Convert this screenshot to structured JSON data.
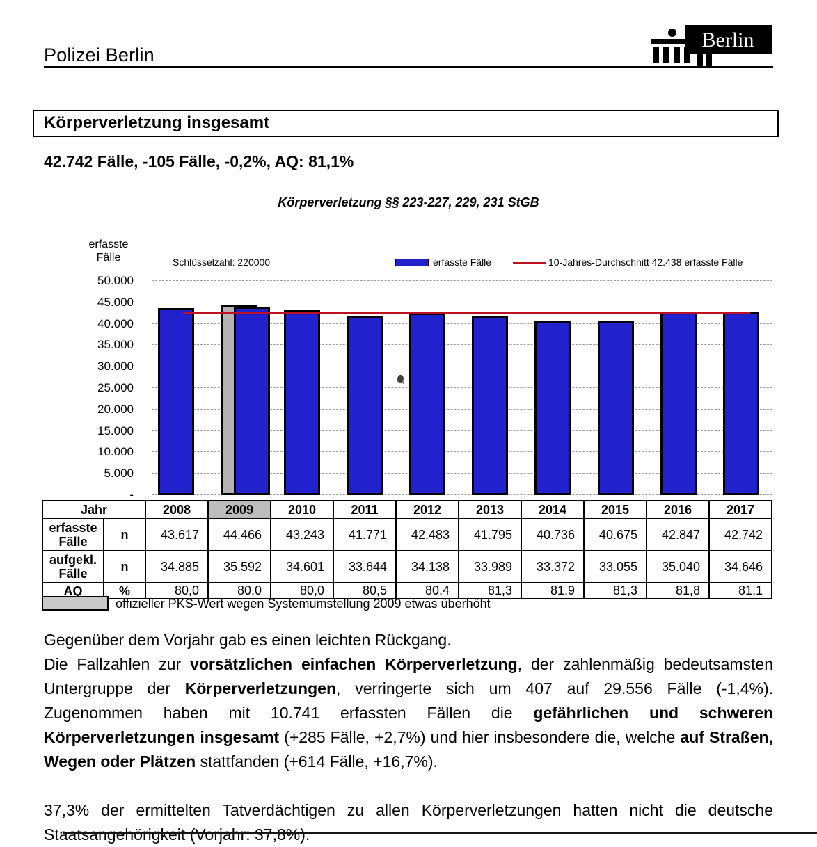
{
  "header": {
    "org": "Polizei Berlin",
    "logo": {
      "wordmark": "Berlin",
      "icon": "brandenburg-gate-icon"
    }
  },
  "title_box": "Körperverletzung insgesamt",
  "summary_line": "42.742 Fälle, -105 Fälle, -0,2%, AQ: 81,1%",
  "chart_data": {
    "type": "bar",
    "title": "Körperverletzung §§ 223-227, 229, 231 StGB",
    "ylabel": "erfasste Fälle",
    "key_label": "Schlüsselzahl: 220000",
    "categories": [
      "2008",
      "2009",
      "2010",
      "2011",
      "2012",
      "2013",
      "2014",
      "2015",
      "2016",
      "2017"
    ],
    "series": [
      {
        "name": "erfasste Fälle",
        "values": [
          43617,
          44466,
          43243,
          41771,
          42483,
          41795,
          40736,
          40675,
          42847,
          42742
        ]
      }
    ],
    "average_line": {
      "label": "10-Jahres-Durchschnitt 42.438 erfasste Fälle",
      "value": 42438
    },
    "legend": [
      {
        "swatch": "bar",
        "label": "erfasste Fälle"
      },
      {
        "swatch": "line",
        "label": "10-Jahres-Durchschnitt 42.438 erfasste Fälle"
      }
    ],
    "ylim": [
      0,
      50000
    ],
    "ytick_step": 5000,
    "zero_tick_label": "-",
    "grid": "dashed-horizontal",
    "bar_color": "#2121cd",
    "avg_color": "#bb1122",
    "highlight_2009": {
      "official_pks_value": 44466,
      "displayed_front_bar_estimate": 43850,
      "back_bar_color": "#b3b3b3",
      "note": "offizieller PKS-Wert wegen Systemumstellung 2009 etwas überhöht"
    }
  },
  "table": {
    "col_header": "Jahr",
    "years": [
      "2008",
      "2009",
      "2010",
      "2011",
      "2012",
      "2013",
      "2014",
      "2015",
      "2016",
      "2017"
    ],
    "highlight_year": "2009",
    "rows": [
      {
        "label": "erfasste Fälle",
        "unit": "n",
        "values": [
          "43.617",
          "44.466",
          "43.243",
          "41.771",
          "42.483",
          "41.795",
          "40.736",
          "40.675",
          "42.847",
          "42.742"
        ]
      },
      {
        "label": "aufgekl. Fälle",
        "unit": "n",
        "values": [
          "34.885",
          "35.592",
          "34.601",
          "33.644",
          "34.138",
          "33.989",
          "33.372",
          "33.055",
          "35.040",
          "34.646"
        ]
      },
      {
        "label": "AQ",
        "unit": "%",
        "values": [
          "80,0",
          "80,0",
          "80,0",
          "80,5",
          "80,4",
          "81,3",
          "81,9",
          "81,3",
          "81,8",
          "81,1"
        ]
      }
    ],
    "footnote": "offizieller PKS-Wert wegen Systemumstellung 2009 etwas überhöht"
  },
  "body": {
    "paragraphs": [
      {
        "gap_before": false,
        "segments": [
          {
            "text": "Gegenüber dem Vorjahr gab es einen leichten Rückgang.",
            "bold": false
          }
        ]
      },
      {
        "gap_before": false,
        "segments": [
          {
            "text": "Die Fallzahlen zur ",
            "bold": false
          },
          {
            "text": "vorsätzlichen einfachen Körperverletzung",
            "bold": true
          },
          {
            "text": ", der zahlenmäßig bedeutsamsten Untergruppe der ",
            "bold": false
          },
          {
            "text": "Körperverletzungen",
            "bold": true
          },
          {
            "text": ", verringerte sich um 407 auf 29.556 Fälle (-1,4%). Zugenommen haben mit 10.741 erfassten Fällen die ",
            "bold": false
          },
          {
            "text": "gefährlichen und schweren Körperverletzungen insgesamt",
            "bold": true
          },
          {
            "text": " (+285 Fälle, +2,7%) und hier insbesondere die, welche ",
            "bold": false
          },
          {
            "text": "auf Straßen, Wegen oder Plätzen",
            "bold": true
          },
          {
            "text": " stattfanden (+614 Fälle, +16,7%).",
            "bold": false
          }
        ]
      },
      {
        "gap_before": true,
        "segments": [
          {
            "text": "37,3% der ermittelten Tatverdächtigen zu allen Körperverletzungen hatten nicht die deutsche Staatsangehörigkeit (Vorjahr: 37,8%).",
            "bold": false
          }
        ]
      }
    ]
  }
}
